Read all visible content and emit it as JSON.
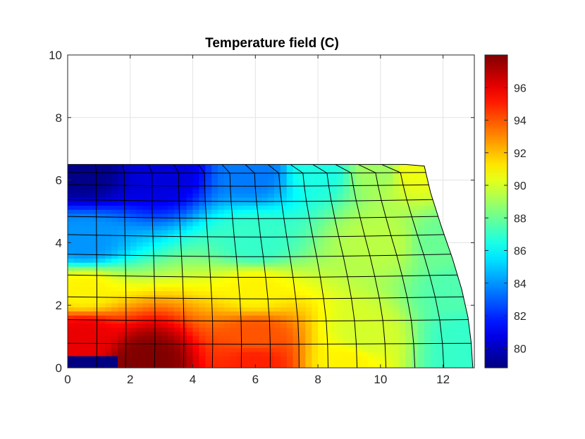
{
  "chart_data": {
    "type": "heatmap",
    "title": "Temperature field (C)",
    "xlabel": "",
    "ylabel": "",
    "xlim": [
      0,
      13
    ],
    "ylim": [
      0,
      10
    ],
    "xticks": [
      "0",
      "2",
      "4",
      "6",
      "8",
      "10",
      "12"
    ],
    "yticks": [
      "0",
      "2",
      "4",
      "6",
      "8",
      "10"
    ],
    "grid": true,
    "colormap": "jet",
    "color_limits": [
      78.8,
      98.0
    ],
    "colorbar_ticks": [
      "80",
      "82",
      "84",
      "86",
      "88",
      "90",
      "92",
      "94",
      "96"
    ],
    "domain_outline": [
      [
        0,
        0
      ],
      [
        12.95,
        0
      ],
      [
        12.9,
        0.8
      ],
      [
        12.8,
        1.6
      ],
      [
        12.6,
        2.5
      ],
      [
        12.3,
        3.5
      ],
      [
        11.95,
        4.5
      ],
      [
        11.6,
        5.6
      ],
      [
        11.4,
        6.45
      ],
      [
        10.8,
        6.5
      ],
      [
        0,
        6.5
      ]
    ],
    "temperature_samples": [
      {
        "x": 0.5,
        "y": 6.3,
        "t": 79.0
      },
      {
        "x": 3.0,
        "y": 6.3,
        "t": 80.5
      },
      {
        "x": 6.0,
        "y": 6.3,
        "t": 83.5
      },
      {
        "x": 8.0,
        "y": 6.3,
        "t": 86.5
      },
      {
        "x": 10.0,
        "y": 6.3,
        "t": 89.0
      },
      {
        "x": 11.0,
        "y": 6.3,
        "t": 90.5
      },
      {
        "x": 0.5,
        "y": 4.0,
        "t": 84.0
      },
      {
        "x": 6.0,
        "y": 4.0,
        "t": 87.0
      },
      {
        "x": 10.0,
        "y": 4.0,
        "t": 89.5
      },
      {
        "x": 12.0,
        "y": 4.0,
        "t": 88.0
      },
      {
        "x": 0.5,
        "y": 2.5,
        "t": 91.0
      },
      {
        "x": 6.0,
        "y": 2.5,
        "t": 91.0
      },
      {
        "x": 12.5,
        "y": 2.5,
        "t": 87.5
      },
      {
        "x": 0.5,
        "y": 1.0,
        "t": 96.0
      },
      {
        "x": 6.0,
        "y": 1.0,
        "t": 94.0
      },
      {
        "x": 9.5,
        "y": 1.0,
        "t": 90.0
      },
      {
        "x": 12.8,
        "y": 1.0,
        "t": 87.0
      },
      {
        "x": 2.5,
        "y": 0.2,
        "t": 98.0
      },
      {
        "x": 6.0,
        "y": 0.2,
        "t": 95.0
      },
      {
        "x": 9.0,
        "y": 0.2,
        "t": 91.0
      },
      {
        "x": 12.8,
        "y": 0.2,
        "t": 87.0
      },
      {
        "x": 0.8,
        "y": 0.2,
        "t": 78.8
      }
    ]
  }
}
